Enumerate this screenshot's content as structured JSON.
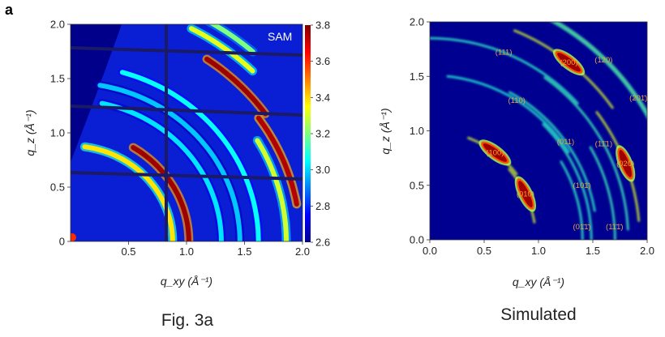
{
  "figure": {
    "panel_letter": "a",
    "left_caption": "Fig. 3a",
    "right_caption": "Simulated"
  },
  "chart_data": [
    {
      "type": "heatmap",
      "title": "Fig. 3a",
      "panel_label": "SAM",
      "xlabel": "q_xy (Å⁻¹)",
      "ylabel": "q_z (Å⁻¹)",
      "xlim": [
        0,
        2.0
      ],
      "ylim": [
        0,
        2.0
      ],
      "xticks": [
        0.5,
        1.0,
        1.5,
        2.0
      ],
      "xtick_labels": [
        "0.5",
        "1.0",
        "1.5",
        "2.0"
      ],
      "yticks": [
        0,
        0.5,
        1.0,
        1.5,
        2.0
      ],
      "ytick_labels": [
        "0",
        "0.5",
        "1.0",
        "1.5",
        "2.0"
      ],
      "colorbar": {
        "min": 2.6,
        "max": 3.8,
        "ticks": [
          2.6,
          2.8,
          3.0,
          3.2,
          3.4,
          3.6,
          3.8
        ],
        "tick_labels": [
          "2.6",
          "2.8",
          "3.0",
          "3.2",
          "3.4",
          "3.6",
          "3.8"
        ],
        "colormap": "jet"
      },
      "grid": false,
      "rings": [
        {
          "q": 0.88,
          "theta_from": 0,
          "theta_to": 82,
          "level": 0.65
        },
        {
          "q": 1.02,
          "theta_from": 0,
          "theta_to": 58,
          "level": 0.97
        },
        {
          "q": 1.3,
          "theta_from": 0,
          "theta_to": 78,
          "level": 0.35
        },
        {
          "q": 1.46,
          "theta_from": 0,
          "theta_to": 80,
          "level": 0.32
        },
        {
          "q": 1.62,
          "theta_from": 0,
          "theta_to": 74,
          "level": 0.38
        },
        {
          "q": 1.86,
          "theta_from": 0,
          "theta_to": 30,
          "level": 0.58
        },
        {
          "q": 1.98,
          "theta_from": 10,
          "theta_to": 35,
          "level": 0.95
        },
        {
          "q": 2.05,
          "theta_from": 35,
          "theta_to": 55,
          "level": 0.97
        },
        {
          "q": 2.22,
          "theta_from": 45,
          "theta_to": 62,
          "level": 0.6
        },
        {
          "q": 2.35,
          "theta_from": 48,
          "theta_to": 66,
          "level": 0.5
        }
      ]
    },
    {
      "type": "heatmap",
      "title": "Simulated",
      "xlabel": "q_xy (Å⁻¹)",
      "ylabel": "q_z (Å⁻¹)",
      "xlim": [
        0,
        2.0
      ],
      "ylim": [
        0,
        2.0
      ],
      "xticks": [
        0.0,
        0.5,
        1.0,
        1.5,
        2.0
      ],
      "xtick_labels": [
        "0.0",
        "0.5",
        "1.0",
        "1.5",
        "2.0"
      ],
      "yticks": [
        0.0,
        0.5,
        1.0,
        1.5,
        2.0
      ],
      "ytick_labels": [
        "0.0",
        "0.5",
        "1.0",
        "1.5",
        "2.0"
      ],
      "grid": false,
      "peaks": [
        {
          "label": "(100)",
          "qxy": 0.6,
          "qz": 0.8,
          "level": 0.97
        },
        {
          "label": "(010)",
          "qxy": 0.88,
          "qz": 0.42,
          "level": 0.98
        },
        {
          "label": "(200)",
          "qxy": 1.28,
          "qz": 1.63,
          "level": 0.95
        },
        {
          "label": "(020)",
          "qxy": 1.8,
          "qz": 0.7,
          "level": 0.97
        },
        {
          "label": "(111)",
          "qxy": 0.68,
          "qz": 1.72,
          "level": 0.3
        },
        {
          "label": "(120)",
          "qxy": 1.6,
          "qz": 1.65,
          "level": 0.4
        },
        {
          "label": "(201̄)",
          "qxy": 1.92,
          "qz": 1.3,
          "level": 0.45
        },
        {
          "label": "(110)",
          "qxy": 0.8,
          "qz": 1.28,
          "level": 0.25
        },
        {
          "label": "(011)",
          "qxy": 1.25,
          "qz": 0.9,
          "level": 0.3
        },
        {
          "label": "(11̄1)",
          "qxy": 1.6,
          "qz": 0.88,
          "level": 0.35
        },
        {
          "label": "(101̄)",
          "qxy": 1.4,
          "qz": 0.5,
          "level": 0.3
        },
        {
          "label": "(01̄1̄)",
          "qxy": 1.4,
          "qz": 0.12,
          "level": 0.3
        },
        {
          "label": "(11̄1̄)",
          "qxy": 1.7,
          "qz": 0.12,
          "level": 0.35
        }
      ],
      "annotation_color": "#e8a33a"
    }
  ],
  "colors": {
    "background": "#0a1fd4",
    "dark_blue": "#00008a",
    "label_orange": "#e8a33a"
  }
}
